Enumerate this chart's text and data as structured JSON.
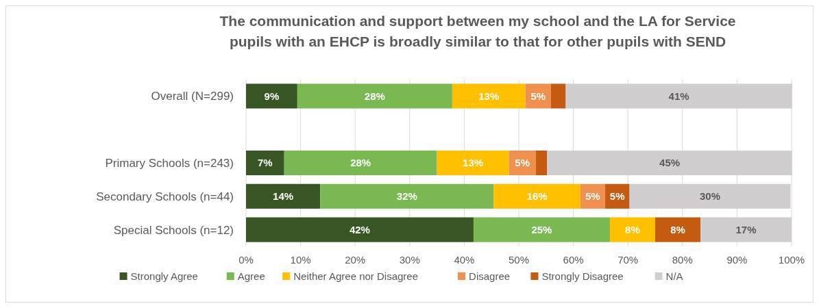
{
  "chart_data": {
    "type": "bar",
    "orientation": "horizontal",
    "stacked": true,
    "title": "The communication and support between my school and the LA for Service pupils with an EHCP is broadly similar to that for other pupils with SEND",
    "categories": [
      "Overall (N=299)",
      null,
      "Primary Schools (n=243)",
      "Secondary Schools (n=44)",
      "Special Schools (n=12)"
    ],
    "series": [
      {
        "name": "Strongly Agree",
        "color": "#375623",
        "values": [
          9.4,
          null,
          7.0,
          13.6,
          41.7
        ],
        "value_labels": [
          "9%",
          null,
          "7%",
          "14%",
          "42%"
        ]
      },
      {
        "name": "Agree",
        "color": "#7ab852",
        "values": [
          28.4,
          null,
          28.0,
          31.8,
          25.0
        ],
        "value_labels": [
          "28%",
          null,
          "28%",
          "32%",
          "25%"
        ]
      },
      {
        "name": "Neither Agree nor Disagree",
        "color": "#ffc000",
        "values": [
          13.4,
          null,
          13.2,
          15.9,
          8.3
        ],
        "value_labels": [
          "13%",
          null,
          "13%",
          "16%",
          "8%"
        ]
      },
      {
        "name": "Disagree",
        "color": "#f0904f",
        "values": [
          4.7,
          null,
          4.9,
          4.5,
          0
        ],
        "value_labels": [
          "5%",
          null,
          "5%",
          "5%",
          null
        ]
      },
      {
        "name": "Strongly Disagree",
        "color": "#c55a11",
        "values": [
          2.7,
          null,
          2.1,
          4.5,
          8.3
        ],
        "value_labels": [
          null,
          null,
          null,
          "5%",
          "8%"
        ]
      },
      {
        "name": "N/A",
        "color": "#d0cece",
        "values": [
          41.5,
          null,
          44.9,
          29.5,
          16.7
        ],
        "value_labels": [
          "41%",
          null,
          "45%",
          "30%",
          "17%"
        ]
      }
    ],
    "xlim": [
      0,
      100
    ],
    "xticks": [
      {
        "value": 0,
        "label": "0%"
      },
      {
        "value": 10,
        "label": "10%"
      },
      {
        "value": 20,
        "label": "20%"
      },
      {
        "value": 30,
        "label": "30%"
      },
      {
        "value": 40,
        "label": "40%"
      },
      {
        "value": 50,
        "label": "50%"
      },
      {
        "value": 60,
        "label": "60%"
      },
      {
        "value": 70,
        "label": "70%"
      },
      {
        "value": 80,
        "label": "80%"
      },
      {
        "value": 90,
        "label": "90%"
      },
      {
        "value": 100,
        "label": "100%"
      }
    ],
    "grid": "x",
    "legend": "bottom"
  }
}
